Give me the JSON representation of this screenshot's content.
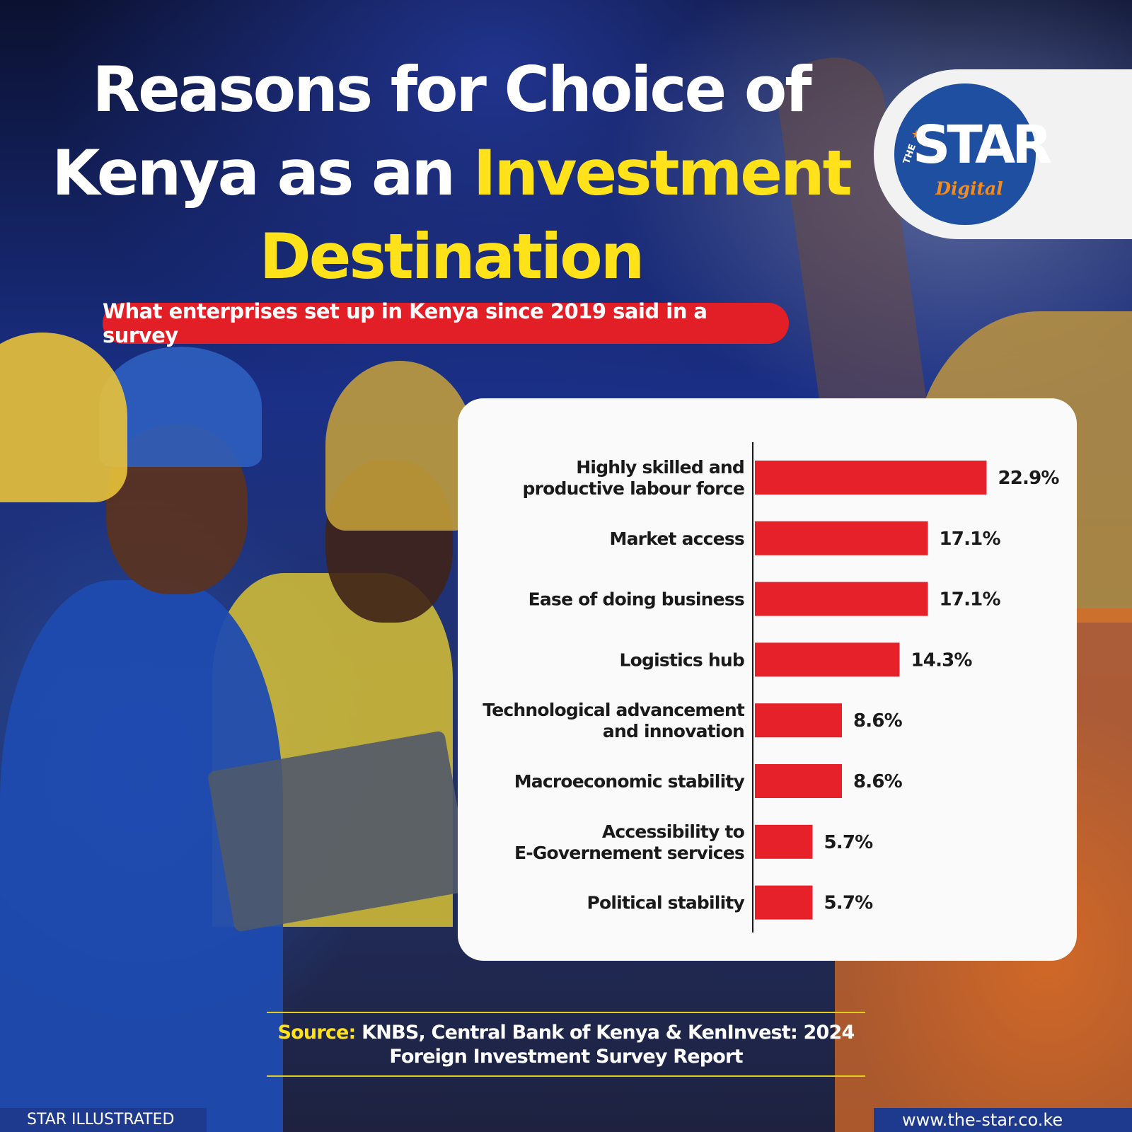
{
  "header": {
    "title_line1": "Reasons for Choice of",
    "title_line2_white": "Kenya as an ",
    "title_line2_yellow": "Investment",
    "title_line3_yellow": "Destination",
    "subtitle": "What enterprises set up in Kenya since 2019 said in a survey"
  },
  "logo": {
    "the": "THE",
    "star": "STAR",
    "digital": "Digital"
  },
  "chart_data": {
    "type": "bar",
    "orientation": "horizontal",
    "categories": [
      "Highly skilled and productive labour force",
      "Market access",
      "Ease of doing business",
      "Logistics hub",
      "Technological advancement and innovation",
      "Macroeconomic stability",
      "Accessibility to E-Governement services",
      "Political stability"
    ],
    "category_lines": [
      [
        "Highly skilled and",
        "productive labour force"
      ],
      [
        "Market access"
      ],
      [
        "Ease of doing business"
      ],
      [
        "Logistics hub"
      ],
      [
        "Technological advancement",
        "and innovation"
      ],
      [
        "Macroeconomic stability"
      ],
      [
        "Accessibility to",
        "E-Governement services"
      ],
      [
        "Political stability"
      ]
    ],
    "values": [
      22.9,
      17.1,
      17.1,
      14.3,
      8.6,
      8.6,
      5.7,
      5.7
    ],
    "value_labels": [
      "22.9%",
      "17.1%",
      "17.1%",
      "14.3%",
      "8.6%",
      "8.6%",
      "5.7%",
      "5.7%"
    ],
    "unit": "%",
    "bar_color": "#e62129",
    "grid": false,
    "legend": "none"
  },
  "source": {
    "label": "Source:",
    "text_line1": " KNBS, Central Bank of Kenya & KenInvest: 2024",
    "text_line2": "Foreign Investment Survey Report"
  },
  "footer": {
    "left": "STAR ILLUSTRATED",
    "right": "www.the-star.co.ke"
  },
  "colors": {
    "accent_yellow": "#ffe21a",
    "accent_red": "#e21f26",
    "brand_blue": "#1f4fa0",
    "logo_orange": "#f28b20"
  }
}
